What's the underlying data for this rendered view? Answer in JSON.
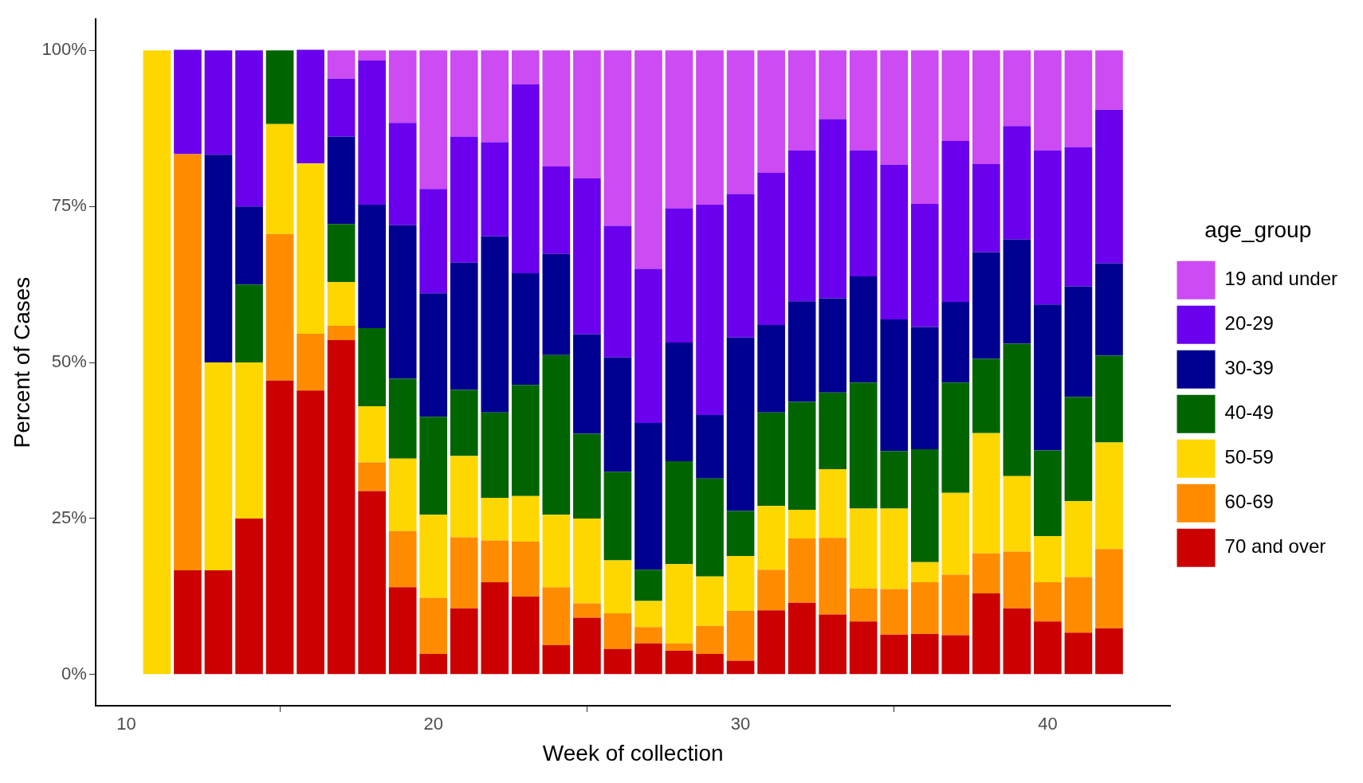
{
  "chart_data": {
    "type": "bar",
    "stacked": true,
    "xlabel": "Week of collection",
    "ylabel": "Percent of Cases",
    "legend_title": "age_group",
    "legend": "right",
    "x": [
      11,
      12,
      13,
      14,
      15,
      16,
      17,
      18,
      19,
      20,
      21,
      22,
      23,
      24,
      25,
      26,
      27,
      28,
      29,
      30,
      31,
      32,
      33,
      34,
      35,
      36,
      37,
      38,
      39,
      40,
      41,
      42
    ],
    "xlim": [
      9,
      44
    ],
    "xticks": [
      10,
      20,
      30,
      40
    ],
    "ylim": [
      -5,
      105
    ],
    "yticks": [
      {
        "value": 0,
        "label": "0%"
      },
      {
        "value": 25,
        "label": "25%"
      },
      {
        "value": 50,
        "label": "50%"
      },
      {
        "value": 75,
        "label": "75%"
      },
      {
        "value": 100,
        "label": "100%"
      }
    ],
    "series": [
      {
        "name": "70 and over",
        "color": "#cc0000",
        "values": [
          0,
          16.7,
          16.7,
          25,
          47.1,
          45.5,
          53.6,
          29.4,
          14,
          3.3,
          10.6,
          14.8,
          12.5,
          4.7,
          9.1,
          4.1,
          5,
          3.8,
          3.3,
          2.2,
          10.3,
          11.5,
          9.6,
          8.5,
          6.4,
          6.5,
          6.3,
          13,
          10.6,
          8.5,
          6.7,
          7.4
        ]
      },
      {
        "name": "60-69",
        "color": "#ff8c00",
        "values": [
          0,
          66.7,
          0,
          0,
          23.5,
          9.1,
          2.3,
          4.6,
          9,
          9,
          11.4,
          6.7,
          8.8,
          9.3,
          2.3,
          5.7,
          2.6,
          1.2,
          4.5,
          8,
          6.5,
          10.3,
          12.3,
          5.3,
          7.3,
          8.3,
          9.7,
          6.4,
          9.1,
          6.3,
          8.9,
          12.7
        ]
      },
      {
        "name": "50-59",
        "color": "#ffd700",
        "values": [
          100,
          0,
          33.3,
          25,
          17.6,
          27.3,
          7,
          9,
          11.6,
          13.3,
          13,
          6.8,
          7.3,
          11.6,
          13.6,
          8.5,
          4.2,
          12.7,
          7.9,
          8.8,
          10.2,
          4.6,
          11,
          12.8,
          12.9,
          3.2,
          13.1,
          19.3,
          12.1,
          7.4,
          12.2,
          17.1
        ]
      },
      {
        "name": "40-49",
        "color": "#006400",
        "values": [
          0,
          0,
          0,
          12.5,
          11.8,
          0,
          9.3,
          12.5,
          12.8,
          15.7,
          10.6,
          13.7,
          17.8,
          25.6,
          13.6,
          14.2,
          5,
          16.5,
          15.7,
          7.2,
          15,
          17.3,
          12.3,
          20.2,
          9.2,
          18.1,
          17.7,
          11.9,
          21.2,
          13.7,
          16.7,
          13.9
        ]
      },
      {
        "name": "30-39",
        "color": "#000090",
        "values": [
          0,
          0,
          33.3,
          12.5,
          0,
          0,
          14,
          19.8,
          24.6,
          19.8,
          20.4,
          28.2,
          17.9,
          16.2,
          15.9,
          18.3,
          23.5,
          19,
          10.2,
          27.8,
          14,
          16.1,
          15.1,
          17,
          21.1,
          19.6,
          12.9,
          17.1,
          16.7,
          23.4,
          17.7,
          14.8
        ]
      },
      {
        "name": "20-29",
        "color": "#6a00ee",
        "values": [
          0,
          16.7,
          16.7,
          25,
          0,
          18.2,
          9.3,
          23.1,
          16.4,
          16.7,
          20.2,
          15.1,
          30.3,
          14,
          25,
          21.1,
          24.7,
          21.5,
          33.7,
          23,
          24.4,
          24.2,
          28.7,
          20.2,
          24.8,
          19.7,
          25.8,
          14.1,
          18.2,
          24.7,
          22.3,
          24.6
        ]
      },
      {
        "name": "19 and under",
        "color": "#cc4bf2",
        "values": [
          0,
          0,
          0,
          0,
          0,
          0,
          4.5,
          1.6,
          11.6,
          22.2,
          13.8,
          14.7,
          5.4,
          18.6,
          20.5,
          28.1,
          35,
          25.3,
          24.7,
          23,
          19.6,
          16,
          11,
          16,
          18.3,
          24.6,
          14.5,
          18.2,
          12.1,
          16,
          15.5,
          9.5
        ]
      }
    ]
  }
}
